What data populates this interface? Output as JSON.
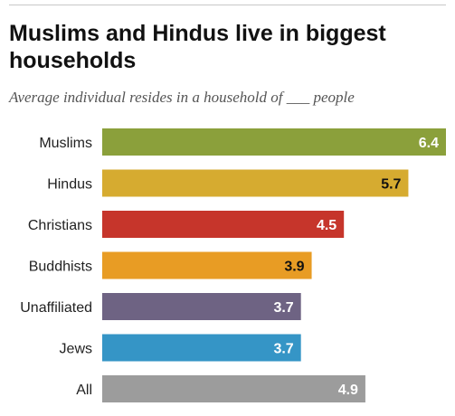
{
  "chart_data": {
    "type": "bar",
    "orientation": "horizontal",
    "title": "Muslims and Hindus live in biggest households",
    "subtitle": "Average individual resides in a household of ___ people",
    "categories": [
      "Muslims",
      "Hindus",
      "Christians",
      "Buddhists",
      "Unaffiliated",
      "Jews",
      "All"
    ],
    "values": [
      6.4,
      5.7,
      4.5,
      3.9,
      3.7,
      3.7,
      4.9
    ],
    "value_labels": [
      "6.4",
      "5.7",
      "4.5",
      "3.9",
      "3.7",
      "3.7",
      "4.9"
    ],
    "bar_colors": [
      "#8ba03b",
      "#d6ab30",
      "#c6352b",
      "#e89c24",
      "#6e6383",
      "#3595c6",
      "#9c9c9c"
    ],
    "label_colors": [
      "#ffffff",
      "#111111",
      "#ffffff",
      "#111111",
      "#ffffff",
      "#ffffff",
      "#ffffff"
    ],
    "xlim": [
      0,
      6.4
    ],
    "grid": false,
    "legend": "none"
  }
}
